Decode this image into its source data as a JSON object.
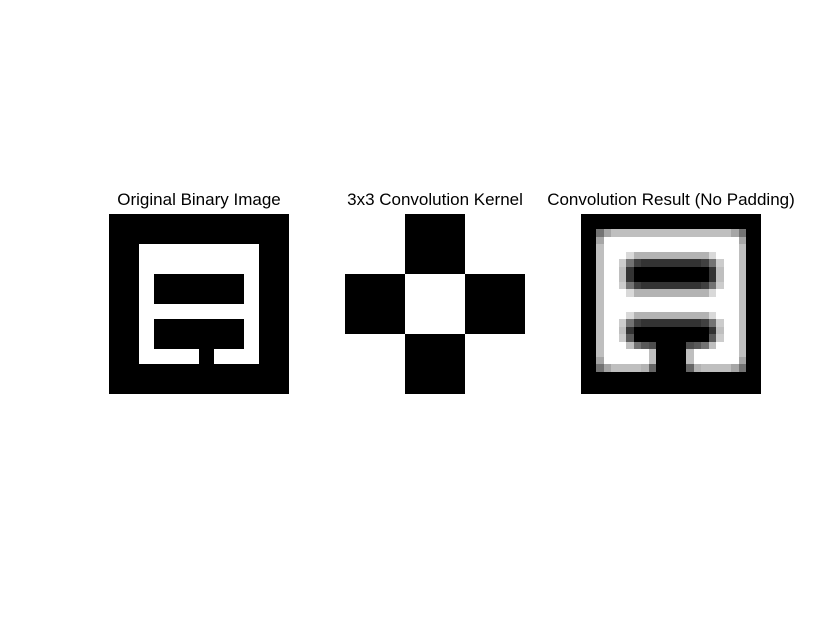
{
  "figure": {
    "panels": [
      {
        "id": "original",
        "title": "Original Binary Image",
        "type": "binary",
        "grid": [
          [
            0,
            0,
            0,
            0,
            0,
            0,
            0,
            0,
            0,
            0,
            0,
            0
          ],
          [
            0,
            0,
            0,
            0,
            0,
            0,
            0,
            0,
            0,
            0,
            0,
            0
          ],
          [
            0,
            0,
            1,
            1,
            1,
            1,
            1,
            1,
            1,
            1,
            0,
            0
          ],
          [
            0,
            0,
            1,
            1,
            1,
            1,
            1,
            1,
            1,
            1,
            0,
            0
          ],
          [
            0,
            0,
            1,
            0,
            0,
            0,
            0,
            0,
            0,
            1,
            0,
            0
          ],
          [
            0,
            0,
            1,
            0,
            0,
            0,
            0,
            0,
            0,
            1,
            0,
            0
          ],
          [
            0,
            0,
            1,
            1,
            1,
            1,
            1,
            1,
            1,
            1,
            0,
            0
          ],
          [
            0,
            0,
            1,
            0,
            0,
            0,
            0,
            0,
            0,
            1,
            0,
            0
          ],
          [
            0,
            0,
            1,
            0,
            0,
            0,
            0,
            0,
            0,
            1,
            0,
            0
          ],
          [
            0,
            0,
            1,
            1,
            1,
            1,
            0,
            1,
            1,
            1,
            0,
            0
          ],
          [
            0,
            0,
            0,
            0,
            0,
            0,
            0,
            0,
            0,
            0,
            0,
            0
          ],
          [
            0,
            0,
            0,
            0,
            0,
            0,
            0,
            0,
            0,
            0,
            0,
            0
          ]
        ],
        "colormap": "gray"
      },
      {
        "id": "kernel",
        "title": "3x3 Convolution Kernel",
        "type": "binary",
        "grid": [
          [
            1,
            0,
            1
          ],
          [
            0,
            1,
            0
          ],
          [
            1,
            0,
            1
          ]
        ],
        "colormap": "gray"
      },
      {
        "id": "result",
        "title": "Convolution Result (No Padding)",
        "type": "grayscale",
        "grid": [
          [
            0,
            0,
            0,
            0,
            0,
            0,
            0,
            0,
            0,
            0,
            0,
            0,
            0,
            0,
            0,
            0,
            0,
            0,
            0,
            0,
            0,
            0,
            0,
            0
          ],
          [
            0,
            0,
            0,
            0,
            0,
            0,
            0,
            0,
            0,
            0,
            0,
            0,
            0,
            0,
            0,
            0,
            0,
            0,
            0,
            0,
            0,
            0,
            0,
            0
          ],
          [
            0,
            0,
            0.45,
            0.65,
            0.75,
            0.75,
            0.75,
            0.75,
            0.75,
            0.75,
            0.75,
            0.75,
            0.75,
            0.75,
            0.75,
            0.75,
            0.75,
            0.75,
            0.75,
            0.75,
            0.65,
            0.45,
            0,
            0
          ],
          [
            0,
            0,
            0.65,
            1,
            1,
            1,
            1,
            1,
            1,
            1,
            1,
            1,
            1,
            1,
            1,
            1,
            1,
            1,
            1,
            1,
            1,
            0.65,
            0,
            0
          ],
          [
            0,
            0,
            0.75,
            1,
            1,
            1,
            1,
            1,
            1,
            1,
            1,
            1,
            1,
            1,
            1,
            1,
            1,
            1,
            1,
            1,
            1,
            0.75,
            0,
            0
          ],
          [
            0,
            0,
            0.75,
            1,
            1,
            1,
            0.85,
            0.7,
            0.7,
            0.7,
            0.7,
            0.7,
            0.7,
            0.7,
            0.7,
            0.7,
            0.7,
            0.85,
            1,
            1,
            1,
            0.75,
            0,
            0
          ],
          [
            0,
            0,
            0.75,
            1,
            1,
            0.8,
            0.45,
            0.25,
            0.2,
            0.2,
            0.2,
            0.2,
            0.2,
            0.2,
            0.2,
            0.2,
            0.25,
            0.45,
            0.8,
            1,
            1,
            0.75,
            0,
            0
          ],
          [
            0,
            0,
            0.75,
            1,
            1,
            0.75,
            0.2,
            0,
            0,
            0,
            0,
            0,
            0,
            0,
            0,
            0,
            0,
            0.2,
            0.75,
            1,
            1,
            0.75,
            0,
            0
          ],
          [
            0,
            0,
            0.75,
            1,
            1,
            0.75,
            0.2,
            0,
            0,
            0,
            0,
            0,
            0,
            0,
            0,
            0,
            0,
            0.2,
            0.75,
            1,
            1,
            0.75,
            0,
            0
          ],
          [
            0,
            0,
            0.75,
            1,
            1,
            0.8,
            0.45,
            0.25,
            0.2,
            0.2,
            0.2,
            0.2,
            0.2,
            0.2,
            0.2,
            0.2,
            0.25,
            0.45,
            0.8,
            1,
            1,
            0.75,
            0,
            0
          ],
          [
            0,
            0,
            0.75,
            1,
            1,
            1,
            0.85,
            0.7,
            0.7,
            0.7,
            0.7,
            0.7,
            0.7,
            0.7,
            0.7,
            0.7,
            0.7,
            0.85,
            1,
            1,
            1,
            0.75,
            0,
            0
          ],
          [
            0,
            0,
            0.75,
            1,
            1,
            1,
            1,
            1,
            1,
            1,
            1,
            1,
            1,
            1,
            1,
            1,
            1,
            1,
            1,
            1,
            1,
            0.75,
            0,
            0
          ],
          [
            0,
            0,
            0.75,
            1,
            1,
            1,
            1,
            1,
            1,
            1,
            1,
            1,
            1,
            1,
            1,
            1,
            1,
            1,
            1,
            1,
            1,
            0.75,
            0,
            0
          ],
          [
            0,
            0,
            0.75,
            1,
            1,
            1,
            0.85,
            0.7,
            0.7,
            0.7,
            0.7,
            0.7,
            0.7,
            0.7,
            0.7,
            0.7,
            0.7,
            0.85,
            1,
            1,
            1,
            0.75,
            0,
            0
          ],
          [
            0,
            0,
            0.75,
            1,
            1,
            0.8,
            0.45,
            0.25,
            0.2,
            0.2,
            0.2,
            0.2,
            0.2,
            0.2,
            0.2,
            0.2,
            0.25,
            0.45,
            0.8,
            1,
            1,
            0.75,
            0,
            0
          ],
          [
            0,
            0,
            0.75,
            1,
            1,
            0.75,
            0.2,
            0,
            0,
            0,
            0,
            0,
            0,
            0,
            0,
            0,
            0,
            0.2,
            0.75,
            1,
            1,
            0.75,
            0,
            0
          ],
          [
            0,
            0,
            0.75,
            1,
            1,
            0.8,
            0.35,
            0,
            0,
            0,
            0,
            0,
            0,
            0,
            0,
            0,
            0,
            0.35,
            0.8,
            1,
            1,
            0.75,
            0,
            0
          ],
          [
            0,
            0,
            0.75,
            1,
            1,
            1,
            0.75,
            0.45,
            0.35,
            0.3,
            0,
            0,
            0,
            0,
            0.3,
            0.35,
            0.45,
            0.75,
            1,
            1,
            1,
            0.75,
            0,
            0
          ],
          [
            0,
            0,
            0.75,
            1,
            1,
            1,
            1,
            1,
            1,
            0.75,
            0,
            0,
            0,
            0,
            0.75,
            1,
            1,
            1,
            1,
            1,
            1,
            0.75,
            0,
            0
          ],
          [
            0,
            0,
            0.65,
            1,
            1,
            1,
            1,
            1,
            1,
            0.75,
            0,
            0,
            0,
            0,
            0.75,
            1,
            1,
            1,
            1,
            1,
            1,
            0.65,
            0,
            0
          ],
          [
            0,
            0,
            0.45,
            0.65,
            0.75,
            0.75,
            0.75,
            0.75,
            0.7,
            0.4,
            0,
            0,
            0,
            0,
            0.4,
            0.7,
            0.75,
            0.75,
            0.75,
            0.75,
            0.65,
            0.45,
            0,
            0
          ],
          [
            0,
            0,
            0,
            0,
            0,
            0,
            0,
            0,
            0,
            0,
            0,
            0,
            0,
            0,
            0,
            0,
            0,
            0,
            0,
            0,
            0,
            0,
            0,
            0
          ],
          [
            0,
            0,
            0,
            0,
            0,
            0,
            0,
            0,
            0,
            0,
            0,
            0,
            0,
            0,
            0,
            0,
            0,
            0,
            0,
            0,
            0,
            0,
            0,
            0
          ],
          [
            0,
            0,
            0,
            0,
            0,
            0,
            0,
            0,
            0,
            0,
            0,
            0,
            0,
            0,
            0,
            0,
            0,
            0,
            0,
            0,
            0,
            0,
            0,
            0
          ]
        ],
        "colormap": "gray"
      }
    ]
  }
}
